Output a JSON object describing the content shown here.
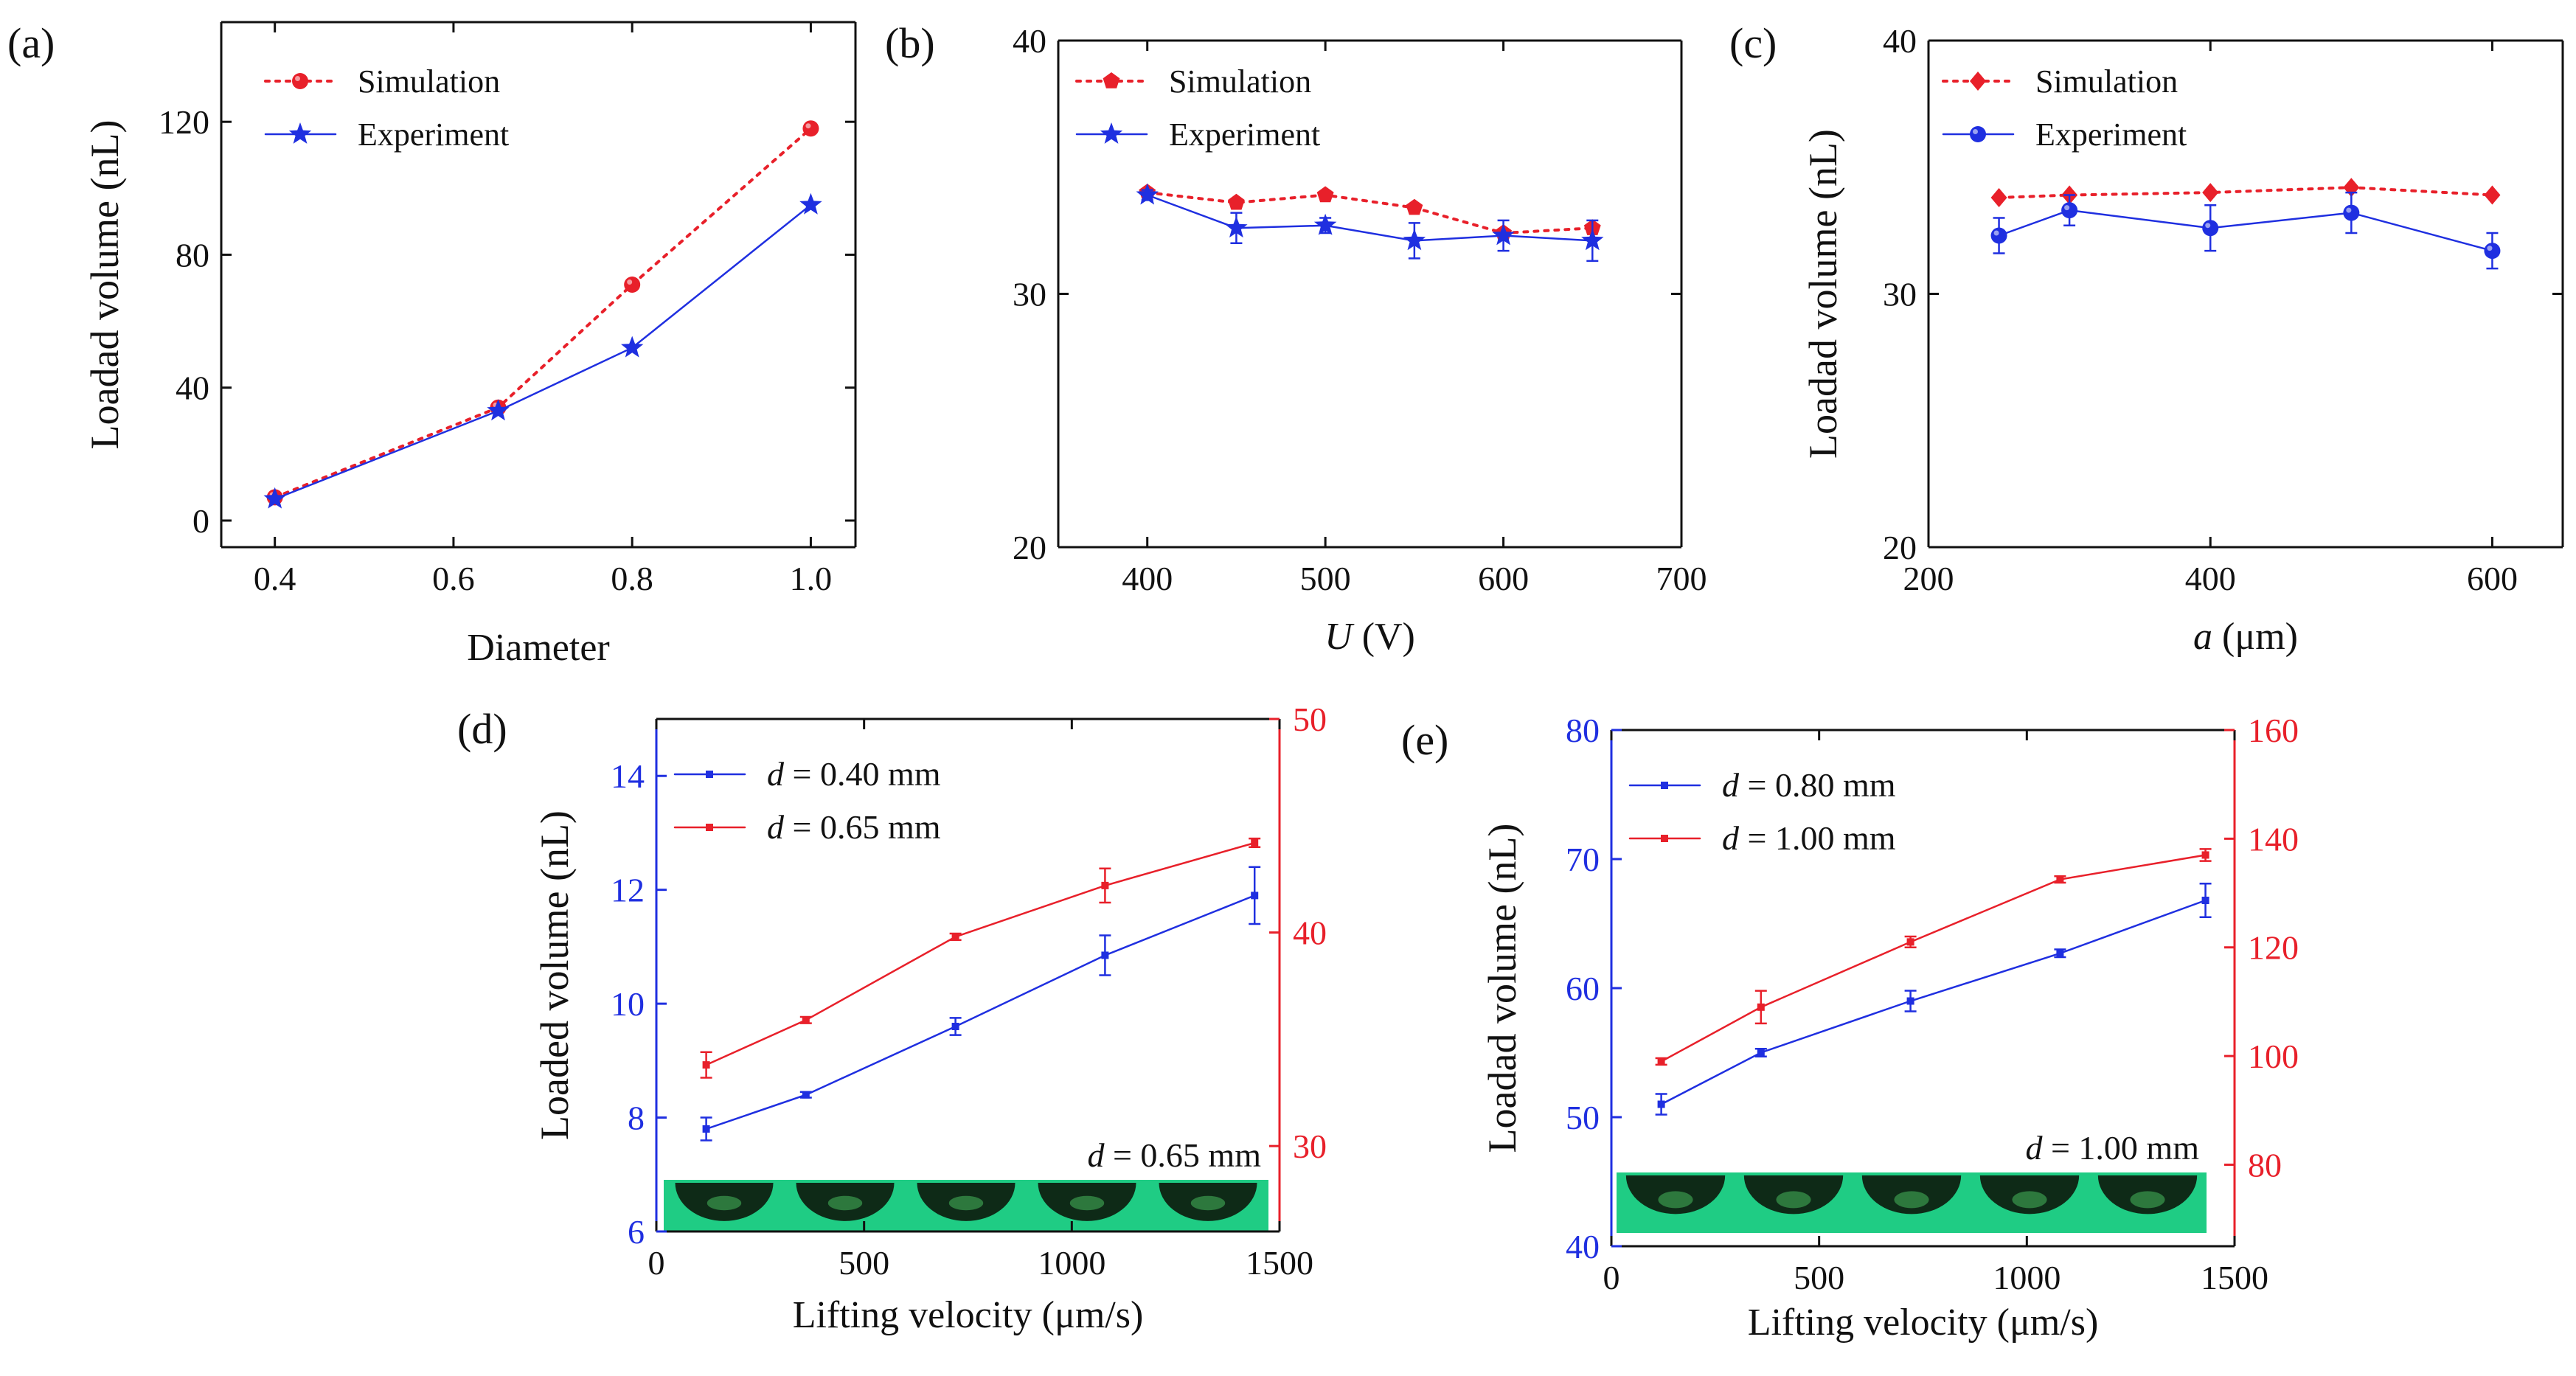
{
  "colors": {
    "red": "#e8202a",
    "blue": "#1f2fe0",
    "axis": "#111111"
  },
  "chart_data": [
    {
      "panel": "(a)",
      "type": "line",
      "xlabel": "Diameter",
      "ylabel": "Loadad volume (nL)",
      "xlim": [
        0.34,
        1.05
      ],
      "ylim": [
        -8,
        150
      ],
      "xticks": [
        0.4,
        0.6,
        0.8,
        1.0
      ],
      "xtick_labels": [
        "0.4",
        "0.6",
        "0.8",
        "1.0"
      ],
      "yticks": [
        0,
        40,
        80,
        120
      ],
      "ytick_labels": [
        "0",
        "40",
        "80",
        "120"
      ],
      "legend": "top-left",
      "series": [
        {
          "name": "Simulation",
          "color": "red",
          "dash": true,
          "marker": "circle",
          "x": [
            0.4,
            0.65,
            0.8,
            1.0
          ],
          "values": [
            7,
            34,
            71,
            118
          ]
        },
        {
          "name": "Experiment",
          "color": "blue",
          "dash": false,
          "marker": "star",
          "x": [
            0.4,
            0.65,
            0.8,
            1.0
          ],
          "values": [
            6.5,
            33,
            52,
            95
          ]
        }
      ]
    },
    {
      "panel": "(b)",
      "type": "line",
      "xlabel_italic": "U",
      "xlabel_rest": " (V)",
      "ylabel": "",
      "xlim": [
        350,
        700
      ],
      "ylim": [
        20,
        40
      ],
      "xticks": [
        400,
        500,
        600,
        700
      ],
      "xtick_labels": [
        "400",
        "500",
        "600",
        "700"
      ],
      "yticks": [
        20,
        30,
        40
      ],
      "ytick_labels": [
        "20",
        "30",
        "40"
      ],
      "legend": "top-left",
      "series": [
        {
          "name": "Simulation",
          "color": "red",
          "dash": true,
          "marker": "pentagon",
          "x": [
            400,
            450,
            500,
            550,
            600,
            650
          ],
          "values": [
            34.0,
            33.6,
            33.9,
            33.4,
            32.4,
            32.6
          ]
        },
        {
          "name": "Experiment",
          "color": "blue",
          "dash": false,
          "marker": "star",
          "x": [
            400,
            450,
            500,
            550,
            600,
            650
          ],
          "values": [
            33.9,
            32.6,
            32.7,
            32.1,
            32.3,
            32.1
          ],
          "err": [
            0.2,
            0.6,
            0.3,
            0.7,
            0.6,
            0.8
          ]
        }
      ]
    },
    {
      "panel": "(c)",
      "type": "line",
      "xlabel_italic": "a",
      "xlabel_rest": " (μm)",
      "ylabel": "Loadad volume (nL)",
      "xlim": [
        200,
        650
      ],
      "ylim": [
        20,
        40
      ],
      "xticks": [
        200,
        400,
        600
      ],
      "xtick_labels": [
        "200",
        "400",
        "600"
      ],
      "yticks": [
        20,
        30,
        40
      ],
      "ytick_labels": [
        "20",
        "30",
        "40"
      ],
      "legend": "top-left",
      "series": [
        {
          "name": "Simulation",
          "color": "red",
          "dash": true,
          "marker": "diamond",
          "x": [
            250,
            300,
            400,
            500,
            600
          ],
          "values": [
            33.8,
            33.9,
            34.0,
            34.2,
            33.9
          ]
        },
        {
          "name": "Experiment",
          "color": "blue",
          "dash": false,
          "marker": "circle",
          "x": [
            250,
            300,
            400,
            500,
            600
          ],
          "values": [
            32.3,
            33.3,
            32.6,
            33.2,
            31.7
          ],
          "err": [
            0.7,
            0.6,
            0.9,
            0.8,
            0.7
          ]
        }
      ]
    },
    {
      "panel": "(d)",
      "type": "line",
      "xlabel": "Lifting velocity (μm/s)",
      "ylabel": "Loaded volume (nL)",
      "xlim": [
        0,
        1500
      ],
      "ylim": [
        6,
        15
      ],
      "ylim_right": [
        26,
        50
      ],
      "xticks": [
        0,
        500,
        1000,
        1500
      ],
      "xtick_labels": [
        "0",
        "500",
        "1000",
        "1500"
      ],
      "yticks": [
        6,
        8,
        10,
        12,
        14
      ],
      "ytick_labels": [
        "6",
        "8",
        "10",
        "12",
        "14"
      ],
      "yticks_right": [
        30,
        40,
        50
      ],
      "ytick_labels_right": [
        "30",
        "40",
        "50"
      ],
      "legend": "top-left",
      "inset_label_italic": "d",
      "inset_label_rest": " = 0.65 mm",
      "series": [
        {
          "name": "d = 0.40 mm",
          "name_italic": "d",
          "name_rest": " = 0.40 mm",
          "color": "blue",
          "axis": "left",
          "x": [
            120,
            360,
            720,
            1080,
            1440
          ],
          "values": [
            7.8,
            8.4,
            9.6,
            10.85,
            11.9
          ],
          "err": [
            0.2,
            0.05,
            0.15,
            0.35,
            0.5
          ]
        },
        {
          "name": "d = 0.65 mm",
          "name_italic": "d",
          "name_rest": " = 0.65 mm",
          "color": "red",
          "axis": "right",
          "x": [
            120,
            360,
            720,
            1080,
            1440
          ],
          "values": [
            33.8,
            35.9,
            39.8,
            42.2,
            44.2
          ],
          "err": [
            0.6,
            0.15,
            0.15,
            0.8,
            0.2
          ]
        }
      ]
    },
    {
      "panel": "(e)",
      "type": "line",
      "xlabel": "Lifting velocity (μm/s)",
      "ylabel": "Loadad volume (nL)",
      "xlim": [
        0,
        1500
      ],
      "ylim": [
        40,
        80
      ],
      "ylim_right": [
        65,
        160
      ],
      "xticks": [
        0,
        500,
        1000,
        1500
      ],
      "xtick_labels": [
        "0",
        "500",
        "1000",
        "1500"
      ],
      "yticks": [
        40,
        50,
        60,
        70,
        80
      ],
      "ytick_labels": [
        "40",
        "50",
        "60",
        "70",
        "80"
      ],
      "yticks_right": [
        80,
        100,
        120,
        140,
        160
      ],
      "ytick_labels_right": [
        "80",
        "100",
        "120",
        "140",
        "160"
      ],
      "legend": "top-left",
      "inset_label_italic": "d",
      "inset_label_rest": " = 1.00 mm",
      "series": [
        {
          "name": "d = 0.80 mm",
          "name_italic": "d",
          "name_rest": " = 0.80 mm",
          "color": "blue",
          "axis": "left",
          "x": [
            120,
            360,
            720,
            1080,
            1430
          ],
          "values": [
            51,
            55,
            59,
            62.7,
            66.8
          ],
          "err": [
            0.8,
            0.3,
            0.8,
            0.3,
            1.3
          ]
        },
        {
          "name": "d = 1.00 mm",
          "name_italic": "d",
          "name_rest": " = 1.00 mm",
          "color": "red",
          "axis": "right",
          "x": [
            120,
            360,
            720,
            1080,
            1430
          ],
          "values": [
            99,
            109,
            121,
            132.5,
            137
          ],
          "err": [
            0.6,
            3.0,
            1.0,
            0.6,
            1.1
          ]
        }
      ]
    }
  ]
}
